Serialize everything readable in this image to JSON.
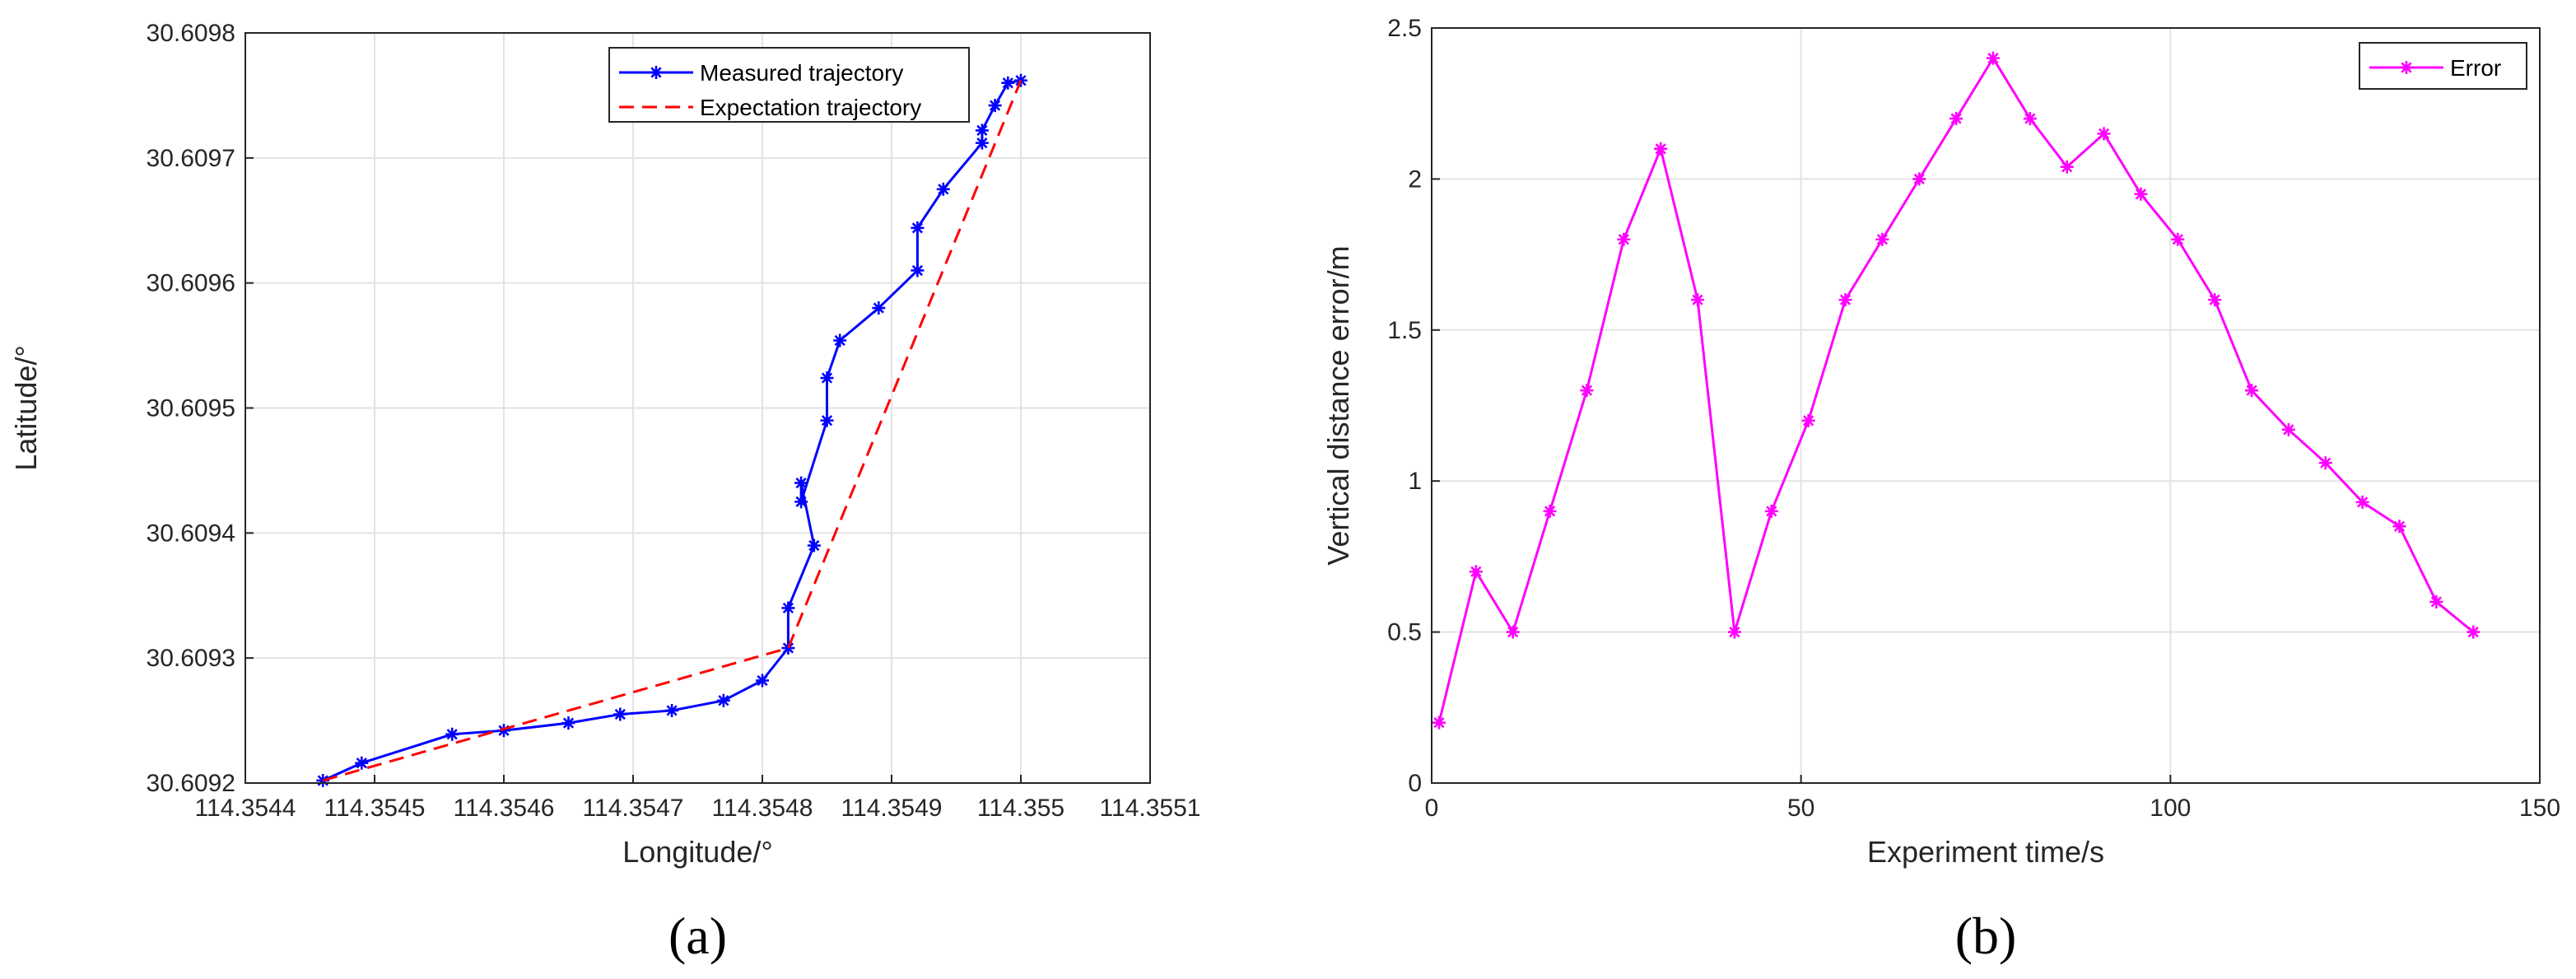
{
  "chart_data": [
    {
      "type": "line",
      "panel_label": "(a)",
      "xlabel": "Longitude/°",
      "ylabel": "Latitude/°",
      "xlim": [
        114.3544,
        114.3551
      ],
      "ylim": [
        30.6092,
        30.6098
      ],
      "xticks": [
        114.3544,
        114.3545,
        114.3546,
        114.3547,
        114.3548,
        114.3549,
        114.355,
        114.3551
      ],
      "xtick_labels": [
        "114.3544",
        "114.3545",
        "114.3546",
        "114.3547",
        "114.3548",
        "114.3549",
        "114.355",
        "114.3551"
      ],
      "yticks": [
        30.6092,
        30.6093,
        30.6094,
        30.6095,
        30.6096,
        30.6097,
        30.6098
      ],
      "ytick_labels": [
        "30.6092",
        "30.6093",
        "30.6094",
        "30.6095",
        "30.6096",
        "30.6097",
        "30.6098"
      ],
      "grid": true,
      "legend_position": "top-right",
      "series": [
        {
          "name": "Measured trajectory",
          "color": "#0000ff",
          "style": "solid",
          "marker": "asterisk",
          "points": [
            [
              114.35446,
              30.609202
            ],
            [
              114.35449,
              30.609216
            ],
            [
              114.35456,
              30.609239
            ],
            [
              114.3546,
              30.609242
            ],
            [
              114.35465,
              30.609248
            ],
            [
              114.35469,
              30.609255
            ],
            [
              114.35473,
              30.609258
            ],
            [
              114.35477,
              30.609266
            ],
            [
              114.3548,
              30.609282
            ],
            [
              114.35482,
              30.609308
            ],
            [
              114.35482,
              30.60934
            ],
            [
              114.35484,
              30.60939
            ],
            [
              114.35483,
              30.60944
            ],
            [
              114.35483,
              30.609425
            ],
            [
              114.35485,
              30.60949
            ],
            [
              114.35485,
              30.609524
            ],
            [
              114.35486,
              30.609554
            ],
            [
              114.35489,
              30.60958
            ],
            [
              114.35492,
              30.60961
            ],
            [
              114.35492,
              30.609644
            ],
            [
              114.35494,
              30.609675
            ],
            [
              114.35497,
              30.609712
            ],
            [
              114.35497,
              30.609722
            ],
            [
              114.35498,
              30.609742
            ],
            [
              114.35499,
              30.60976
            ],
            [
              114.355,
              30.609762
            ]
          ]
        },
        {
          "name": "Expectation trajectory",
          "color": "#ff0000",
          "style": "dashed",
          "marker": "none",
          "points": [
            [
              114.35446,
              30.609202
            ],
            [
              114.35482,
              30.609308
            ],
            [
              114.355,
              30.609762
            ]
          ]
        }
      ]
    },
    {
      "type": "line",
      "panel_label": "(b)",
      "xlabel": "Experiment time/s",
      "ylabel": "Vertical distance error/m",
      "xlim": [
        0,
        150
      ],
      "ylim": [
        0,
        2.5
      ],
      "xticks": [
        0,
        50,
        100,
        150
      ],
      "xtick_labels": [
        "0",
        "50",
        "100",
        "150"
      ],
      "yticks": [
        0,
        0.5,
        1,
        1.5,
        2,
        2.5
      ],
      "ytick_labels": [
        "0",
        "0.5",
        "1",
        "1.5",
        "2",
        "2.5"
      ],
      "grid": true,
      "legend_position": "top-right",
      "series": [
        {
          "name": "Error",
          "color": "#ff00ff",
          "style": "solid",
          "marker": "asterisk",
          "points": [
            [
              1,
              0.2
            ],
            [
              6,
              0.7
            ],
            [
              11,
              0.5
            ],
            [
              16,
              0.9
            ],
            [
              21,
              1.3
            ],
            [
              26,
              1.8
            ],
            [
              31,
              2.1
            ],
            [
              36,
              1.6
            ],
            [
              41,
              0.5
            ],
            [
              46,
              0.9
            ],
            [
              51,
              1.2
            ],
            [
              56,
              1.6
            ],
            [
              61,
              1.8
            ],
            [
              66,
              2.0
            ],
            [
              71,
              2.2
            ],
            [
              76,
              2.4
            ],
            [
              81,
              2.2
            ],
            [
              86,
              2.04
            ],
            [
              91,
              2.15
            ],
            [
              96,
              1.95
            ],
            [
              101,
              1.8
            ],
            [
              106,
              1.6
            ],
            [
              111,
              1.3
            ],
            [
              116,
              1.17
            ],
            [
              121,
              1.06
            ],
            [
              126,
              0.93
            ],
            [
              131,
              0.85
            ],
            [
              136,
              0.6
            ],
            [
              141,
              0.5
            ]
          ]
        }
      ]
    }
  ]
}
